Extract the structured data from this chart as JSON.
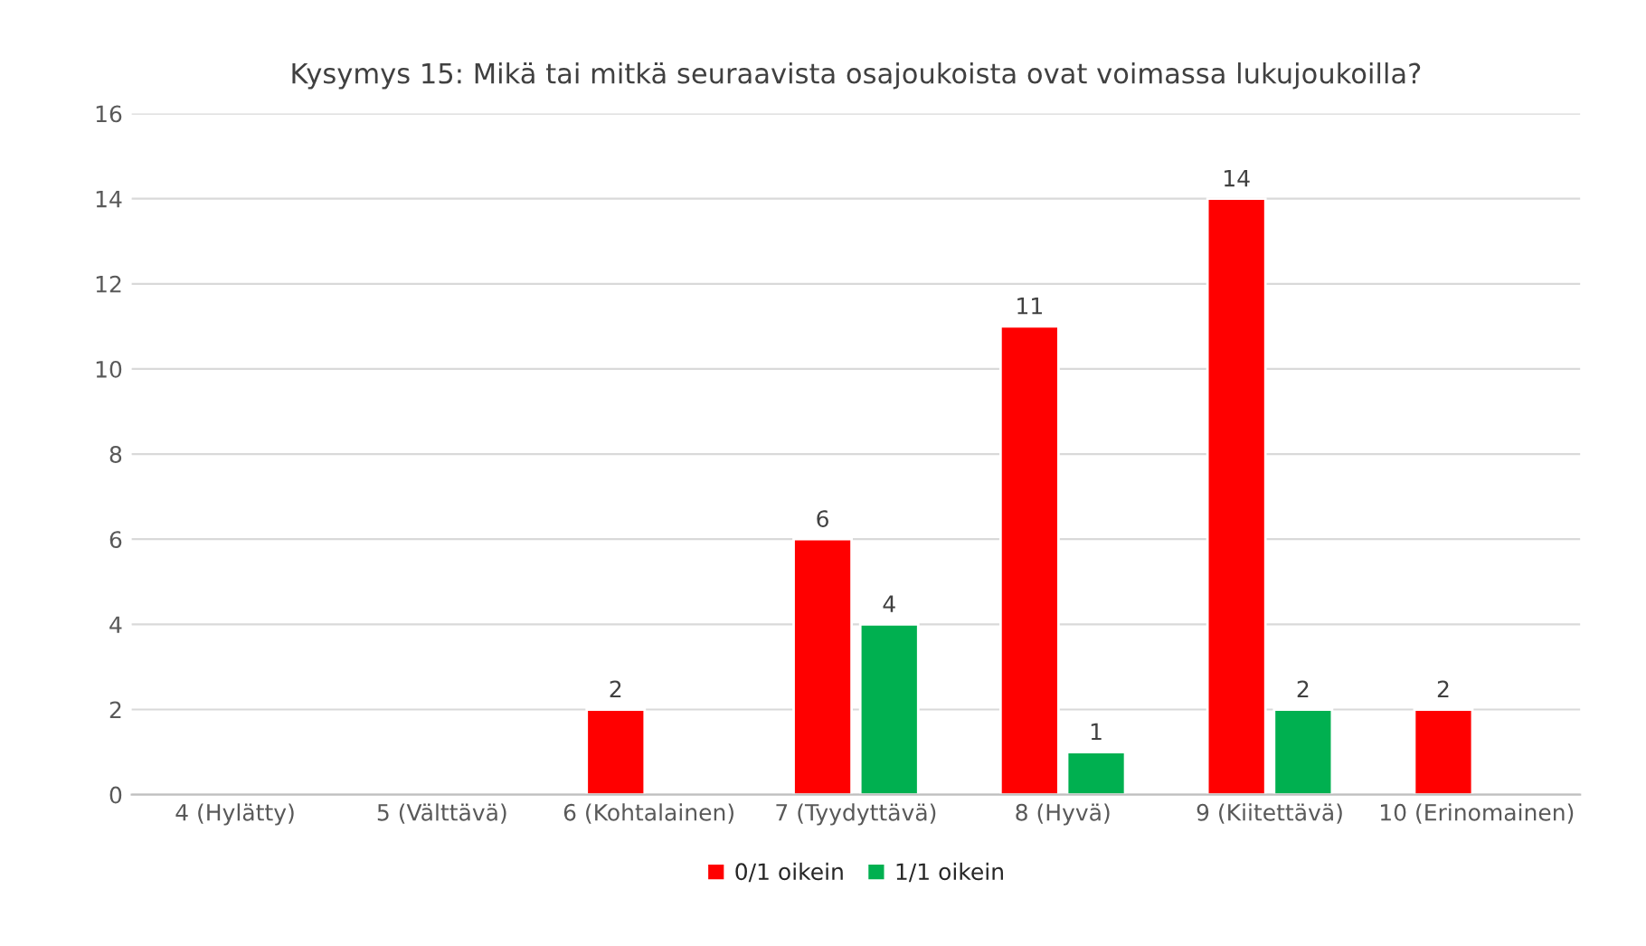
{
  "chart_data": {
    "type": "bar",
    "title": "Kysymys 15: Mikä tai mitkä seuraavista osajoukoista ovat voimassa lukujoukoilla?",
    "categories": [
      "4 (Hylätty)",
      "5 (Välttävä)",
      "6 (Kohtalainen)",
      "7 (Tyydyttävä)",
      "8 (Hyvä)",
      "9 (Kiitettävä)",
      "10 (Erinomainen)"
    ],
    "series": [
      {
        "name": "0/1 oikein",
        "color": "#ff0000",
        "values": [
          null,
          null,
          2,
          6,
          11,
          14,
          2
        ]
      },
      {
        "name": "1/1 oikein",
        "color": "#00b050",
        "values": [
          null,
          null,
          null,
          4,
          1,
          2,
          null
        ]
      }
    ],
    "ylim": [
      0,
      16
    ],
    "yticks": [
      0,
      2,
      4,
      6,
      8,
      10,
      12,
      14,
      16
    ],
    "grid": "y",
    "legend": "bottom",
    "data_labels": true
  }
}
